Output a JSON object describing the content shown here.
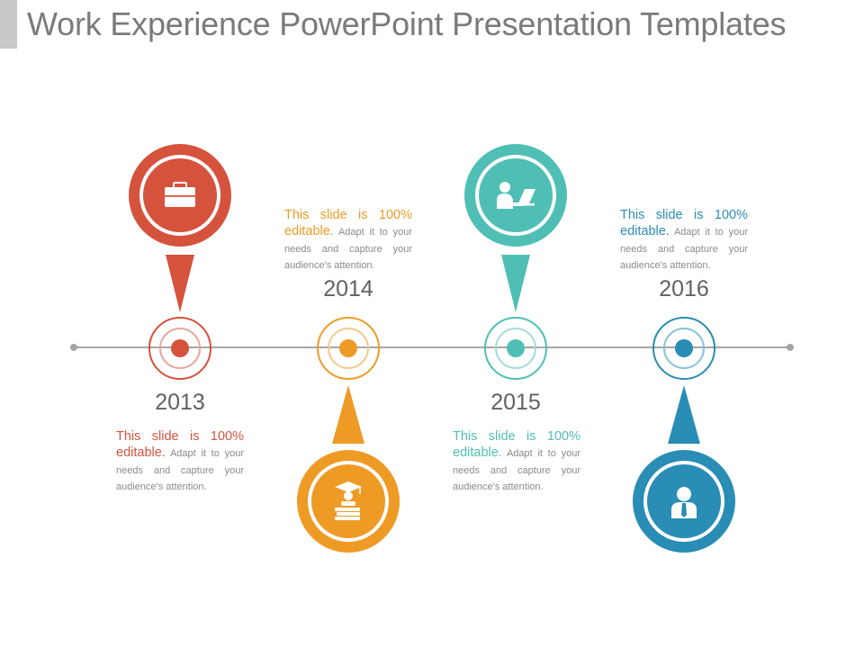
{
  "title": "Work Experience PowerPoint Presentation Templates",
  "colors": {
    "red": "#d5533d",
    "orange": "#ee9b26",
    "teal": "#4fbfb5",
    "blue": "#2a8db5",
    "line": "#a6a6a6"
  },
  "milestones": [
    {
      "year": "2013",
      "color": "red",
      "icon": "briefcase-icon",
      "highlight": "This slide is 100% editable.",
      "text": " Adapt it to your needs and capture your audience's attention."
    },
    {
      "year": "2014",
      "color": "orange",
      "icon": "graduate-books-icon",
      "highlight": "This slide is 100% editable.",
      "text": " Adapt it to your needs and capture your audience's attention."
    },
    {
      "year": "2015",
      "color": "teal",
      "icon": "person-laptop-icon",
      "highlight": "This slide is 100% editable.",
      "text": " Adapt it to your needs and capture your audience's attention."
    },
    {
      "year": "2016",
      "color": "blue",
      "icon": "businessman-icon",
      "highlight": "This slide is 100% editable.",
      "text": " Adapt it to your needs and capture your audience's attention."
    }
  ]
}
